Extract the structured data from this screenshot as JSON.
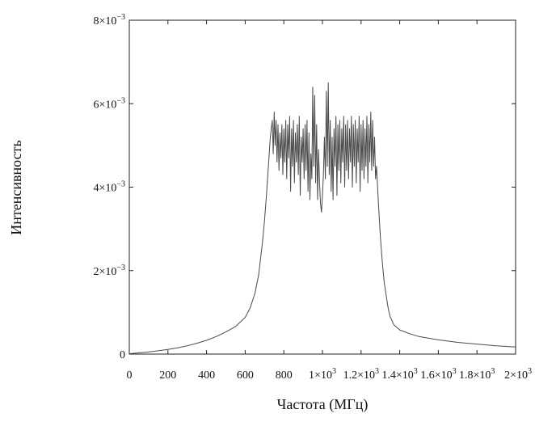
{
  "chart_data": {
    "type": "line",
    "title": "",
    "xlabel": "Частота (МГц)",
    "ylabel": "Интенсивность",
    "xlim": [
      0,
      2000
    ],
    "ylim": [
      0,
      0.008
    ],
    "grid": false,
    "legend": "none",
    "x_ticks": [
      {
        "value": 0,
        "label": "0",
        "sup": ""
      },
      {
        "value": 200,
        "label": "200",
        "sup": ""
      },
      {
        "value": 400,
        "label": "400",
        "sup": ""
      },
      {
        "value": 600,
        "label": "600",
        "sup": ""
      },
      {
        "value": 800,
        "label": "800",
        "sup": ""
      },
      {
        "value": 1000,
        "label": "1×10",
        "sup": "3"
      },
      {
        "value": 1200,
        "label": "1.2×10",
        "sup": "3"
      },
      {
        "value": 1400,
        "label": "1.4×10",
        "sup": "3"
      },
      {
        "value": 1600,
        "label": "1.6×10",
        "sup": "3"
      },
      {
        "value": 1800,
        "label": "1.8×10",
        "sup": "3"
      },
      {
        "value": 2000,
        "label": "2×10",
        "sup": "3"
      }
    ],
    "y_ticks": [
      {
        "value": 0,
        "label": "0",
        "sup": ""
      },
      {
        "value": 0.002,
        "label": "2×10",
        "sup": "−3"
      },
      {
        "value": 0.004,
        "label": "4×10",
        "sup": "−3"
      },
      {
        "value": 0.006,
        "label": "6×10",
        "sup": "−3"
      },
      {
        "value": 0.008,
        "label": "8×10",
        "sup": "−3"
      }
    ],
    "series": [
      {
        "color": "#4a4a4a",
        "x": [
          0,
          50,
          100,
          150,
          200,
          250,
          300,
          350,
          400,
          450,
          500,
          550,
          600,
          625,
          650,
          670,
          690,
          700,
          710,
          720,
          730,
          740,
          745,
          750,
          755,
          760,
          765,
          770,
          775,
          780,
          785,
          790,
          795,
          800,
          805,
          810,
          815,
          820,
          825,
          830,
          835,
          840,
          845,
          850,
          855,
          860,
          865,
          870,
          875,
          880,
          885,
          890,
          895,
          900,
          905,
          910,
          915,
          920,
          925,
          930,
          935,
          940,
          945,
          950,
          955,
          960,
          965,
          970,
          975,
          980,
          985,
          990,
          995,
          1000,
          1005,
          1010,
          1015,
          1020,
          1025,
          1030,
          1035,
          1040,
          1045,
          1050,
          1055,
          1060,
          1065,
          1070,
          1075,
          1080,
          1085,
          1090,
          1095,
          1100,
          1105,
          1110,
          1115,
          1120,
          1125,
          1130,
          1135,
          1140,
          1145,
          1150,
          1155,
          1160,
          1165,
          1170,
          1175,
          1180,
          1185,
          1190,
          1195,
          1200,
          1205,
          1210,
          1215,
          1220,
          1225,
          1230,
          1235,
          1240,
          1245,
          1250,
          1255,
          1260,
          1265,
          1270,
          1275,
          1280,
          1290,
          1300,
          1310,
          1320,
          1330,
          1340,
          1350,
          1370,
          1400,
          1450,
          1500,
          1600,
          1700,
          1800,
          1900,
          2000
        ],
        "y": [
          1e-05,
          3e-05,
          5e-05,
          8e-05,
          0.00011,
          0.00015,
          0.0002,
          0.00026,
          0.00033,
          0.00042,
          0.00053,
          0.00066,
          0.00088,
          0.0011,
          0.00145,
          0.0019,
          0.0027,
          0.0032,
          0.0038,
          0.0045,
          0.0052,
          0.0056,
          0.0048,
          0.0058,
          0.005,
          0.0056,
          0.0046,
          0.0055,
          0.0044,
          0.0053,
          0.0047,
          0.0055,
          0.0043,
          0.0054,
          0.0046,
          0.0056,
          0.0042,
          0.0055,
          0.0047,
          0.0057,
          0.0039,
          0.0054,
          0.0045,
          0.0056,
          0.0041,
          0.0053,
          0.0046,
          0.0055,
          0.0043,
          0.0057,
          0.0038,
          0.0052,
          0.0046,
          0.0054,
          0.0042,
          0.0055,
          0.0044,
          0.0056,
          0.0039,
          0.0053,
          0.0037,
          0.0048,
          0.0042,
          0.0064,
          0.0045,
          0.0062,
          0.0041,
          0.0055,
          0.0037,
          0.0049,
          0.0041,
          0.0036,
          0.0034,
          0.0038,
          0.0043,
          0.0052,
          0.0042,
          0.0063,
          0.0045,
          0.0065,
          0.0043,
          0.0056,
          0.0039,
          0.0052,
          0.0037,
          0.0054,
          0.0045,
          0.0057,
          0.0038,
          0.0055,
          0.0044,
          0.0056,
          0.0041,
          0.0054,
          0.0046,
          0.0057,
          0.004,
          0.0055,
          0.0044,
          0.0056,
          0.0042,
          0.0054,
          0.0046,
          0.0057,
          0.004,
          0.0055,
          0.0045,
          0.0056,
          0.0041,
          0.0054,
          0.0046,
          0.0057,
          0.0039,
          0.0055,
          0.0044,
          0.0056,
          0.0042,
          0.0054,
          0.0045,
          0.0057,
          0.0041,
          0.0055,
          0.0046,
          0.0058,
          0.0044,
          0.0056,
          0.0045,
          0.0052,
          0.0042,
          0.0045,
          0.0036,
          0.0028,
          0.0022,
          0.0017,
          0.0014,
          0.0011,
          0.0009,
          0.0007,
          0.00058,
          0.00049,
          0.00042,
          0.00034,
          0.00028,
          0.00024,
          0.0002,
          0.00017
        ]
      }
    ]
  }
}
